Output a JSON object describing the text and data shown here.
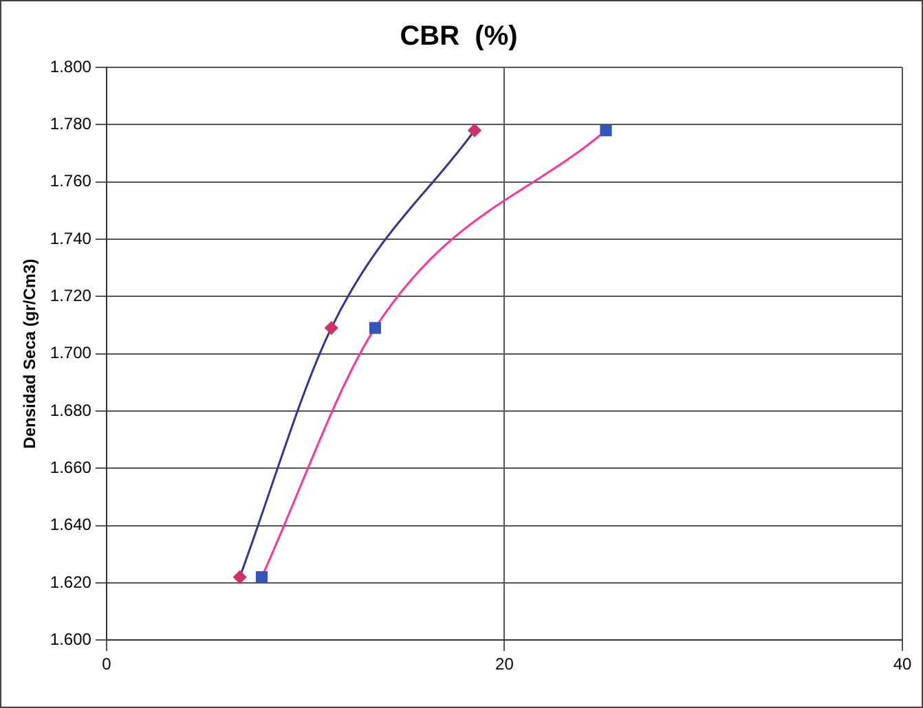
{
  "chart_data": {
    "type": "line",
    "title": "CBR  (%)",
    "ylabel": "Densidad Seca (gr/Cm3)",
    "series": [
      {
        "x": [
          6.7,
          11.3,
          18.5
        ],
        "values": [
          1.622,
          1.709,
          1.778
        ],
        "color": "#333399",
        "colors": [
          "#cc3366",
          "#cc3366",
          "#cc3366"
        ],
        "marker": "diamond"
      },
      {
        "x": [
          7.8,
          13.5,
          25.1
        ],
        "values": [
          1.622,
          1.709,
          1.778
        ],
        "color": "#ff3399",
        "colors": [
          "#3355bb",
          "#3355bb",
          "#3355bb"
        ],
        "marker": "square"
      }
    ],
    "xlim": [
      0,
      40
    ],
    "xticks": [
      0,
      20,
      40
    ],
    "ylim": [
      1.6,
      1.8
    ],
    "yticks": [
      {
        "value": 1.6,
        "label": "1.600"
      },
      {
        "value": 1.62,
        "label": "1.620"
      },
      {
        "value": 1.64,
        "label": "1.640"
      },
      {
        "value": 1.66,
        "label": "1.660"
      },
      {
        "value": 1.68,
        "label": "1.680"
      },
      {
        "value": 1.7,
        "label": "1.700"
      },
      {
        "value": 1.72,
        "label": "1.720"
      },
      {
        "value": 1.74,
        "label": "1.740"
      },
      {
        "value": 1.76,
        "label": "1.760"
      },
      {
        "value": 1.78,
        "label": "1.780"
      },
      {
        "value": 1.8,
        "label": "1.800"
      }
    ],
    "grid": true,
    "legend": false,
    "line_style": "solid"
  }
}
